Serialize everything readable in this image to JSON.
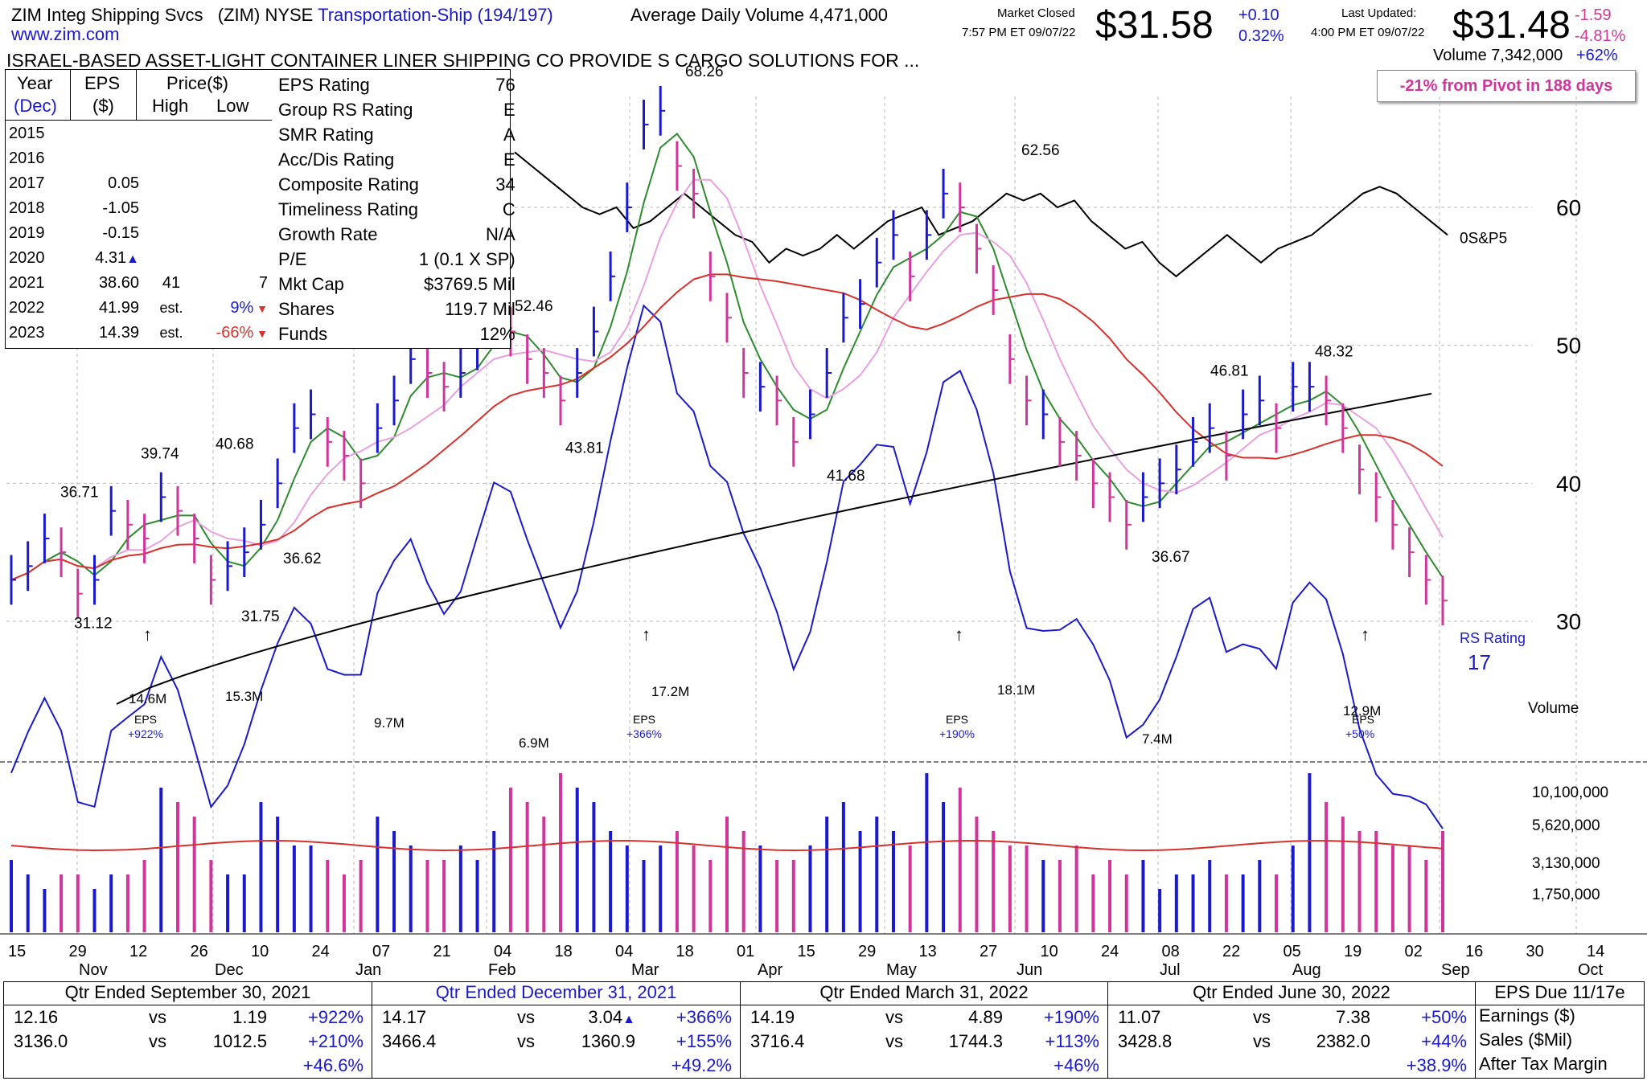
{
  "header": {
    "company": "ZIM Integ Shipping Svcs",
    "ticker_exchange": "(ZIM) NYSE",
    "industry": "Transportation-Ship (194/197)",
    "avg_volume": "Average Daily Volume 4,471,000",
    "website": "www.zim.com",
    "description": "ISRAEL-BASED ASSET-LIGHT CONTAINER LINER SHIPPING CO PROVIDE S CARGO SOLUTIONS FOR ...",
    "market_status": "Market Closed",
    "market_time": "7:57 PM ET 09/07/22",
    "after_price": "$31.58",
    "after_change": "+0.10",
    "after_pct": "0.32%",
    "last_updated_label": "Last Updated:",
    "last_updated_time": "4:00 PM ET 09/07/22",
    "close_price": "$31.48",
    "close_change": "-1.59",
    "close_pct": "-4.81%",
    "volume": "Volume 7,342,000",
    "volume_pct": "+62%",
    "pivot_note": "-21% from Pivot in 188 days"
  },
  "eps_table": {
    "headers": [
      "Year",
      "EPS",
      "Price($)",
      "(Dec)",
      "($)",
      "High",
      "Low"
    ],
    "rows": [
      {
        "year": "2015",
        "eps": "",
        "high": "",
        "low": ""
      },
      {
        "year": "2016",
        "eps": "",
        "high": "",
        "low": ""
      },
      {
        "year": "2017",
        "eps": "0.05",
        "high": "",
        "low": ""
      },
      {
        "year": "2018",
        "eps": "-1.05",
        "high": "",
        "low": ""
      },
      {
        "year": "2019",
        "eps": "-0.15",
        "high": "",
        "low": ""
      },
      {
        "year": "2020",
        "eps": "4.31▲",
        "high": "",
        "low": ""
      },
      {
        "year": "2021",
        "eps": "38.60",
        "high": "41",
        "low": "7"
      },
      {
        "year": "2022",
        "eps": "41.99",
        "high": "est.",
        "low": "9%"
      },
      {
        "year": "2023",
        "eps": "14.39",
        "high": "est.",
        "low": "-66%"
      }
    ]
  },
  "ratings": [
    {
      "label": "EPS Rating",
      "value": "76"
    },
    {
      "label": "Group RS Rating",
      "value": "E"
    },
    {
      "label": "SMR Rating",
      "value": "A"
    },
    {
      "label": "Acc/Dis Rating",
      "value": "E"
    },
    {
      "label": "Composite Rating",
      "value": "34"
    },
    {
      "label": "Timeliness Rating",
      "value": "C"
    },
    {
      "label": "Growth Rate",
      "value": "N/A"
    },
    {
      "label": "P/E",
      "value": "1 (0.1 X SP)"
    },
    {
      "label": "Mkt Cap",
      "value": "$3769.5 Mil"
    },
    {
      "label": "Shares",
      "value": "119.7 Mil"
    },
    {
      "label": "Funds",
      "value": "12%"
    }
  ],
  "chart_data": [
    {
      "type": "candlestick",
      "title": "",
      "x_labels": [
        "15",
        "29",
        "12",
        "26",
        "10",
        "24",
        "07",
        "21",
        "04",
        "18",
        "04",
        "18",
        "01",
        "15",
        "29",
        "13",
        "27",
        "10",
        "24",
        "08",
        "22",
        "05",
        "19",
        "02",
        "16",
        "30",
        "14"
      ],
      "month_labels": [
        "Nov",
        "Dec",
        "Jan",
        "Feb",
        "Mar",
        "Apr",
        "May",
        "Jun",
        "Jul",
        "Aug",
        "Sep",
        "Oct"
      ],
      "y_ticks": [
        30,
        40,
        50,
        60
      ],
      "ylim": [
        22,
        71
      ],
      "price_labels": [
        "36.71",
        "31.12",
        "39.74",
        "40.68",
        "31.75",
        "36.62",
        "52.46",
        "43.81",
        "68.26",
        "41.68",
        "62.56",
        "36.67",
        "46.81",
        "48.32"
      ],
      "sp500_label": "0S&P5",
      "rs_label": "RS Rating",
      "rs_value": "17",
      "closes": [
        33,
        34,
        36,
        35,
        32,
        33,
        38,
        37,
        36,
        39,
        38,
        36,
        33,
        34,
        35,
        37,
        40,
        44,
        45,
        43,
        42,
        40,
        44,
        46,
        49,
        48,
        47,
        48,
        50,
        52,
        51,
        49,
        48,
        46,
        48,
        51,
        55,
        60,
        66,
        67,
        63,
        61,
        55,
        52,
        48,
        47,
        46,
        43,
        45,
        48,
        52,
        53,
        56,
        58,
        55,
        58,
        61,
        60,
        57,
        54,
        49,
        46,
        45,
        43,
        42,
        40,
        39,
        37,
        39,
        40,
        41,
        43,
        44,
        42,
        45,
        46,
        44,
        47,
        47,
        46,
        44,
        41,
        39,
        37,
        35,
        33,
        31.5
      ],
      "colors": [
        "b",
        "b",
        "b",
        "p",
        "p",
        "b",
        "b",
        "p",
        "p",
        "b",
        "p",
        "p",
        "p",
        "b",
        "b",
        "b",
        "b",
        "b",
        "b",
        "p",
        "p",
        "p",
        "b",
        "b",
        "b",
        "p",
        "p",
        "b",
        "b",
        "b",
        "p",
        "p",
        "p",
        "p",
        "b",
        "b",
        "b",
        "b",
        "b",
        "b",
        "p",
        "p",
        "p",
        "p",
        "p",
        "b",
        "p",
        "p",
        "b",
        "b",
        "b",
        "b",
        "b",
        "b",
        "p",
        "b",
        "b",
        "p",
        "p",
        "p",
        "p",
        "p",
        "b",
        "p",
        "p",
        "p",
        "p",
        "p",
        "b",
        "b",
        "b",
        "b",
        "b",
        "p",
        "b",
        "b",
        "p",
        "b",
        "b",
        "p",
        "p",
        "p",
        "p",
        "p",
        "p",
        "p",
        "p"
      ],
      "volume": {
        "labels": [
          "14.6M",
          "15.3M",
          "9.7M",
          "6.9M",
          "17.2M",
          "18.1M",
          "7.4M",
          "12.9M"
        ],
        "y_ticks": [
          "10,100,000",
          "5,620,000",
          "3,130,000",
          "1,750,000"
        ],
        "title": "Volume",
        "values": [
          5,
          4,
          3,
          4,
          4,
          3,
          4,
          4,
          5,
          10,
          9,
          8,
          5,
          4,
          4,
          9,
          8,
          6,
          6,
          5,
          4,
          5,
          8,
          7,
          6,
          5,
          5,
          6,
          5,
          7,
          10,
          9,
          8,
          11,
          10,
          9,
          7,
          6,
          5,
          6,
          7,
          6,
          5,
          8,
          7,
          6,
          5,
          5,
          6,
          8,
          9,
          7,
          8,
          7,
          6,
          11,
          9,
          10,
          8,
          7,
          6,
          6,
          5,
          5,
          6,
          4,
          5,
          4,
          5,
          3,
          4,
          4,
          5,
          4,
          4,
          5,
          4,
          6,
          11,
          9,
          8,
          7,
          7,
          6,
          6,
          5,
          7
        ]
      },
      "eps_markers": [
        {
          "label": "EPS",
          "value": "+922%"
        },
        {
          "label": "EPS",
          "value": "+366%"
        },
        {
          "label": "EPS",
          "value": "+190%"
        },
        {
          "label": "EPS",
          "value": "+50%"
        }
      ]
    }
  ],
  "quarters": [
    {
      "header": "Qtr Ended September 30, 2021",
      "rows": [
        [
          "12.16",
          "vs",
          "1.19",
          "+922%"
        ],
        [
          "3136.0",
          "vs",
          "1012.5",
          "+210%"
        ],
        [
          "",
          "",
          "",
          "+46.6%"
        ]
      ],
      "header_color": "#000"
    },
    {
      "header": "Qtr Ended December 31, 2021",
      "rows": [
        [
          "14.17",
          "vs",
          "3.04▲",
          "+366%"
        ],
        [
          "3466.4",
          "vs",
          "1360.9",
          "+155%"
        ],
        [
          "",
          "",
          "",
          "+49.2%"
        ]
      ],
      "header_color": "#1a1acc"
    },
    {
      "header": "Qtr Ended March 31, 2022",
      "rows": [
        [
          "14.19",
          "vs",
          "4.89",
          "+190%"
        ],
        [
          "3716.4",
          "vs",
          "1744.3",
          "+113%"
        ],
        [
          "",
          "",
          "",
          "+46%"
        ]
      ],
      "header_color": "#000"
    },
    {
      "header": "Qtr Ended June 30, 2022",
      "rows": [
        [
          "11.07",
          "vs",
          "7.38",
          "+50%"
        ],
        [
          "3428.8",
          "vs",
          "2382.0",
          "+44%"
        ],
        [
          "",
          "",
          "",
          "+38.9%"
        ]
      ],
      "header_color": "#000"
    }
  ],
  "eps_due": {
    "header": "EPS Due 11/17e",
    "rows": [
      "Earnings ($)",
      "Sales ($Mil)",
      "After Tax Margin"
    ]
  },
  "colors": {
    "up": "#1a1acc",
    "down": "#d0359a",
    "ma50": "#2e8b2e",
    "ma21": "#e8a0e0",
    "ma200": "#d8302a",
    "ma_long": "#000"
  }
}
